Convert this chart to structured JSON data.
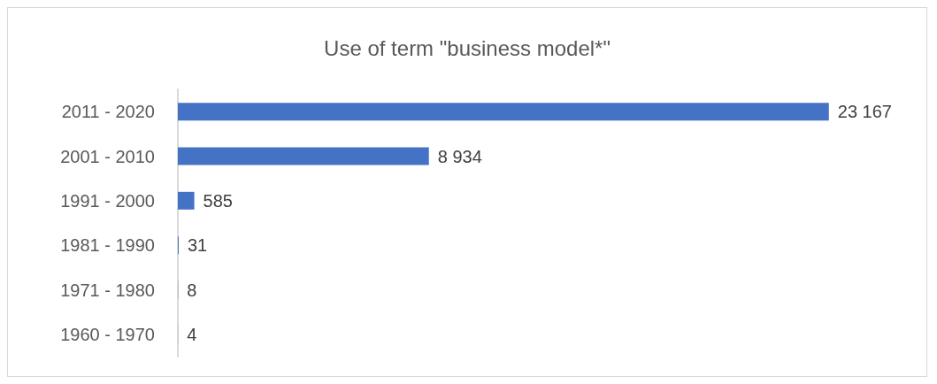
{
  "chart_data": {
    "type": "bar",
    "orientation": "horizontal",
    "title": "Use of term \"business model*\"",
    "categories": [
      "2011 - 2020",
      "2001 - 2010",
      "1991 - 2000",
      "1981 - 1990",
      "1971 - 1980",
      "1960 - 1970"
    ],
    "values": [
      23167,
      8934,
      585,
      31,
      8,
      4
    ],
    "value_labels": [
      "23 167",
      "8 934",
      "585",
      "31",
      "8",
      "4"
    ],
    "color": "#4472c4"
  }
}
